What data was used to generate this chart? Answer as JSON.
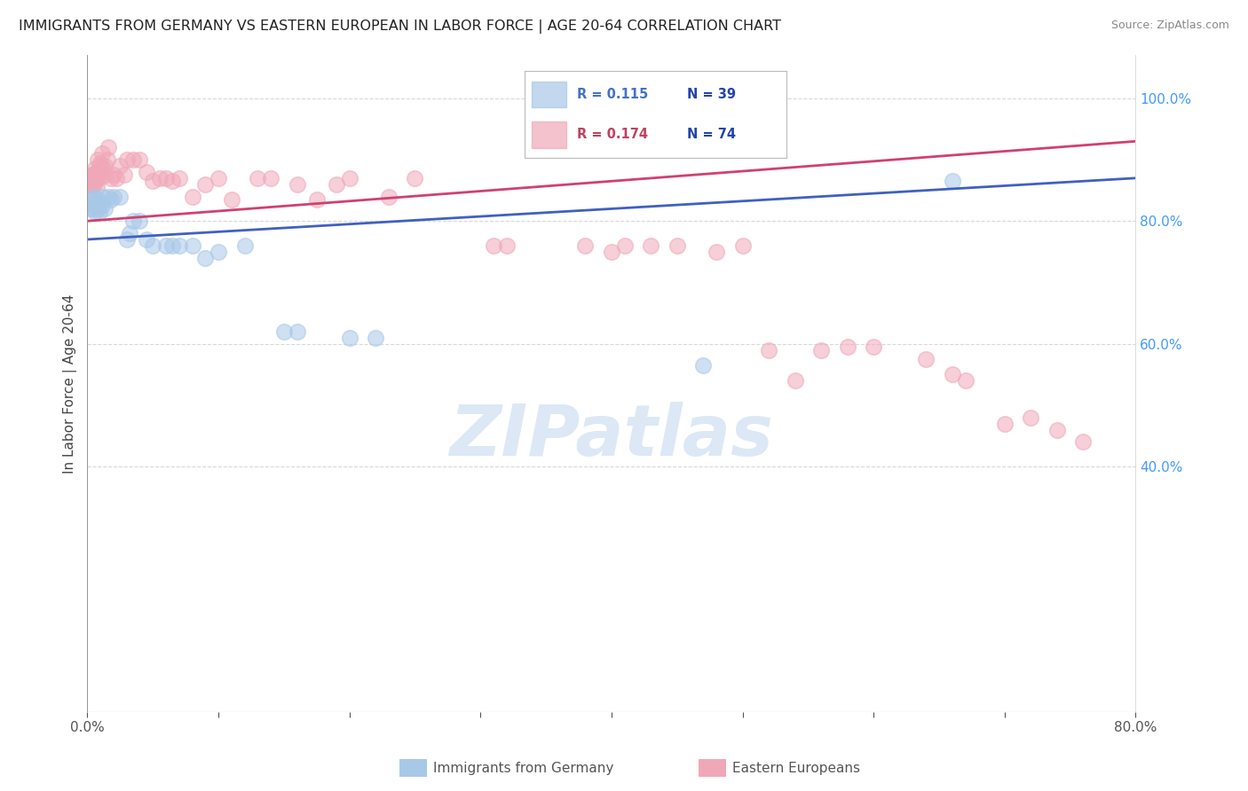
{
  "title": "IMMIGRANTS FROM GERMANY VS EASTERN EUROPEAN IN LABOR FORCE | AGE 20-64 CORRELATION CHART",
  "source": "Source: ZipAtlas.com",
  "ylabel": "In Labor Force | Age 20-64",
  "xlim": [
    0.0,
    0.8
  ],
  "ylim": [
    0.0,
    1.07
  ],
  "yticks_right": [
    0.4,
    0.6,
    0.8,
    1.0
  ],
  "ytick_labels_right": [
    "40.0%",
    "60.0%",
    "80.0%",
    "100.0%"
  ],
  "blue_color": "#a8c8e8",
  "pink_color": "#f0a8b8",
  "blue_line_color": "#4060c0",
  "pink_line_color": "#d04070",
  "legend_r_blue_color": "#4472c4",
  "legend_r_pink_color": "#c04060",
  "legend_n_color": "#2244aa",
  "watermark_text": "ZIPatlas",
  "watermark_color": "#dce8f5",
  "grid_color": "#d8d8d8",
  "blue_x": [
    0.002,
    0.003,
    0.004,
    0.004,
    0.005,
    0.005,
    0.006,
    0.006,
    0.007,
    0.007,
    0.008,
    0.009,
    0.01,
    0.011,
    0.012,
    0.013,
    0.016,
    0.018,
    0.02,
    0.025,
    0.03,
    0.032,
    0.035,
    0.04,
    0.045,
    0.05,
    0.06,
    0.065,
    0.07,
    0.08,
    0.09,
    0.1,
    0.12,
    0.15,
    0.16,
    0.2,
    0.22,
    0.47,
    0.66
  ],
  "blue_y": [
    0.83,
    0.82,
    0.835,
    0.82,
    0.84,
    0.825,
    0.83,
    0.815,
    0.835,
    0.825,
    0.82,
    0.815,
    0.83,
    0.825,
    0.84,
    0.82,
    0.84,
    0.835,
    0.84,
    0.84,
    0.77,
    0.78,
    0.8,
    0.8,
    0.77,
    0.76,
    0.76,
    0.76,
    0.76,
    0.76,
    0.74,
    0.75,
    0.76,
    0.62,
    0.62,
    0.61,
    0.61,
    0.565,
    0.865
  ],
  "pink_x": [
    0.001,
    0.002,
    0.002,
    0.003,
    0.003,
    0.004,
    0.004,
    0.005,
    0.005,
    0.006,
    0.006,
    0.006,
    0.007,
    0.007,
    0.007,
    0.008,
    0.008,
    0.009,
    0.009,
    0.01,
    0.01,
    0.011,
    0.012,
    0.013,
    0.014,
    0.015,
    0.016,
    0.018,
    0.02,
    0.022,
    0.025,
    0.028,
    0.03,
    0.035,
    0.04,
    0.045,
    0.05,
    0.055,
    0.06,
    0.065,
    0.07,
    0.08,
    0.09,
    0.1,
    0.11,
    0.13,
    0.14,
    0.16,
    0.175,
    0.19,
    0.2,
    0.23,
    0.25,
    0.31,
    0.32,
    0.38,
    0.4,
    0.41,
    0.43,
    0.45,
    0.48,
    0.5,
    0.52,
    0.54,
    0.56,
    0.58,
    0.6,
    0.64,
    0.66,
    0.67,
    0.7,
    0.72,
    0.74,
    0.76
  ],
  "pink_y": [
    0.86,
    0.87,
    0.86,
    0.875,
    0.855,
    0.87,
    0.86,
    0.875,
    0.86,
    0.875,
    0.87,
    0.885,
    0.87,
    0.88,
    0.855,
    0.875,
    0.9,
    0.89,
    0.87,
    0.895,
    0.88,
    0.91,
    0.885,
    0.89,
    0.875,
    0.9,
    0.92,
    0.87,
    0.875,
    0.87,
    0.89,
    0.875,
    0.9,
    0.9,
    0.9,
    0.88,
    0.865,
    0.87,
    0.87,
    0.865,
    0.87,
    0.84,
    0.86,
    0.87,
    0.835,
    0.87,
    0.87,
    0.86,
    0.835,
    0.86,
    0.87,
    0.84,
    0.87,
    0.76,
    0.76,
    0.76,
    0.75,
    0.76,
    0.76,
    0.76,
    0.75,
    0.76,
    0.59,
    0.54,
    0.59,
    0.595,
    0.595,
    0.575,
    0.55,
    0.54,
    0.47,
    0.48,
    0.46,
    0.44
  ],
  "blue_trend_x": [
    0.0,
    0.8
  ],
  "blue_trend_y": [
    0.77,
    0.87
  ],
  "pink_trend_x": [
    0.0,
    0.8
  ],
  "pink_trend_y": [
    0.8,
    0.93
  ]
}
